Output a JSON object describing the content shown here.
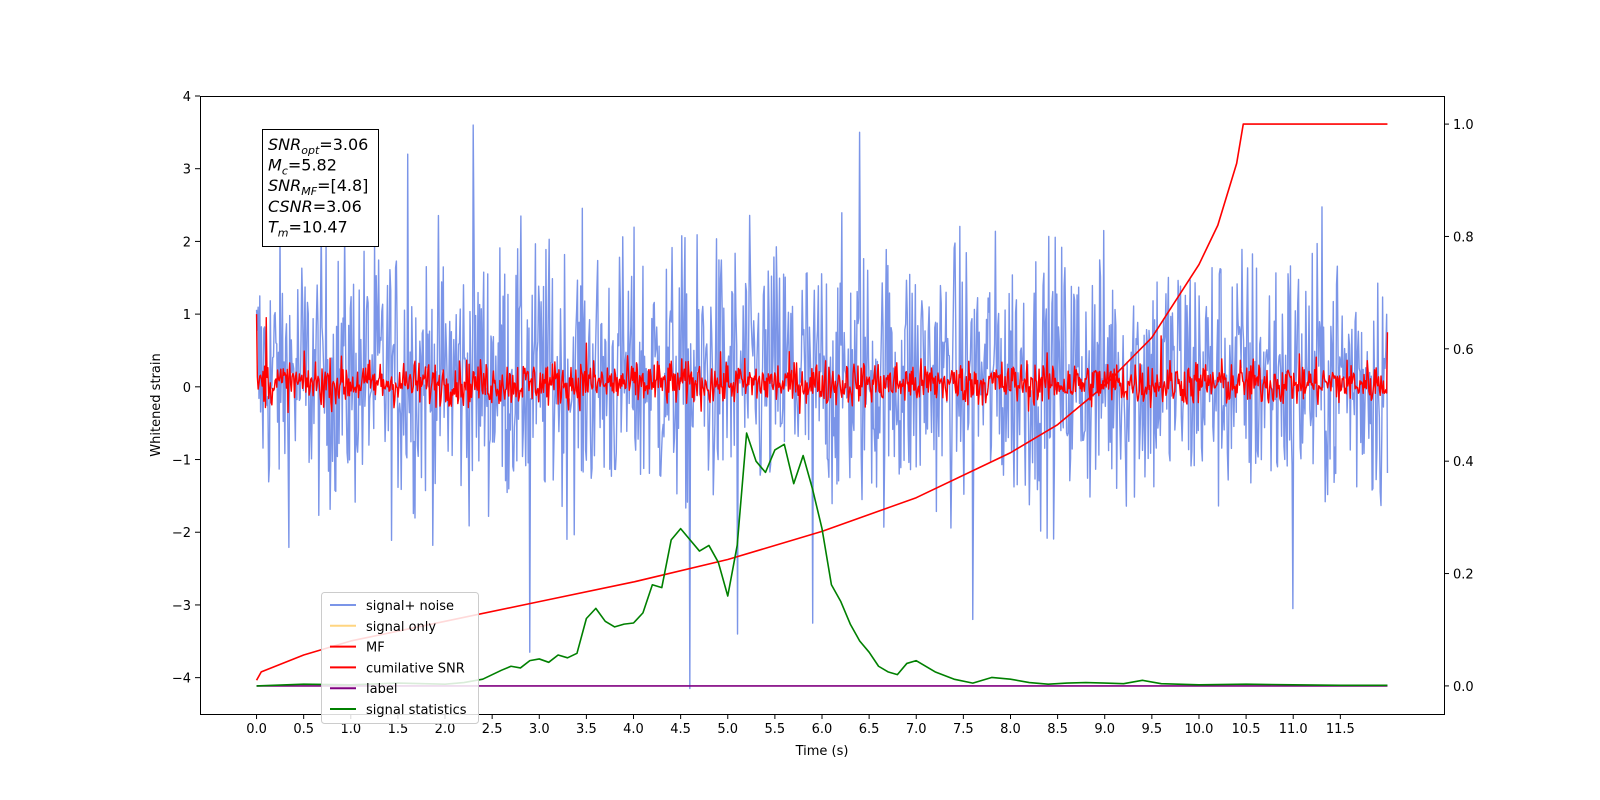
{
  "chart_data": {
    "type": "line",
    "xlabel": "Time (s)",
    "ylabel": "Whitened strain",
    "xlim": [
      -0.6,
      12.6
    ],
    "ylim": [
      -4.5,
      4.0
    ],
    "y2lim": [
      -0.05,
      1.05
    ],
    "x_ticks": [
      "0.0",
      "0.5",
      "1.0",
      "1.5",
      "2.0",
      "2.5",
      "3.0",
      "3.5",
      "4.0",
      "4.5",
      "5.0",
      "5.5",
      "6.0",
      "6.5",
      "7.0",
      "7.5",
      "8.0",
      "8.5",
      "9.0",
      "9.5",
      "10.0",
      "10.5",
      "11.0",
      "11.5"
    ],
    "y_ticks": [
      "4",
      "3",
      "2",
      "1",
      "0",
      "−1",
      "−2",
      "−3",
      "−4"
    ],
    "y2_ticks": [
      "1.0",
      "0.8",
      "0.6",
      "0.4",
      "0.2",
      "0.0"
    ],
    "annotation": [
      {
        "var": "SNR",
        "sub": "opt",
        "value": "=3.06"
      },
      {
        "var": "M",
        "sub": "c",
        "value": "=5.82"
      },
      {
        "var": "SNR",
        "sub": "MF",
        "value": "=[4.8]"
      },
      {
        "var": "CSNR",
        "sub": "",
        "value": "=3.06"
      },
      {
        "var": "T",
        "sub": "m",
        "value": "=10.47"
      }
    ],
    "legend": {
      "placement": "lower-left",
      "entries": [
        {
          "label": "signal+ noise",
          "color": "#7b95e8"
        },
        {
          "label": "signal only",
          "color": "#ffd580"
        },
        {
          "label": "MF",
          "color": "#ff0000"
        },
        {
          "label": "cumilative SNR",
          "color": "#ff0000"
        },
        {
          "label": "label",
          "color": "#800080"
        },
        {
          "label": "signal statistics",
          "color": "#008000"
        }
      ]
    },
    "series": [
      {
        "name": "signal+ noise",
        "color": "#7b95e8",
        "axis": "left",
        "kind": "noise",
        "x_range": [
          0.0,
          12.0
        ],
        "center": 0.15,
        "typical_range": [
          -1.8,
          2.3
        ],
        "spikes": [
          [
            2.3,
            3.6
          ],
          [
            6.4,
            3.5
          ],
          [
            1.6,
            3.2
          ],
          [
            4.6,
            -4.15
          ],
          [
            2.9,
            -3.65
          ],
          [
            5.1,
            -3.4
          ],
          [
            11.0,
            -3.05
          ],
          [
            5.9,
            -3.25
          ],
          [
            7.6,
            -3.2
          ]
        ]
      },
      {
        "name": "MF",
        "color": "#ff0000",
        "axis": "left",
        "kind": "noise",
        "x_range": [
          0.0,
          12.0
        ],
        "center": 0.05,
        "typical_range": [
          -0.3,
          0.4
        ],
        "spikes": [
          [
            0.0,
            1.0
          ],
          [
            0.1,
            0.95
          ],
          [
            3.5,
            0.6
          ],
          [
            9.6,
            0.7
          ],
          [
            12.0,
            0.75
          ]
        ]
      },
      {
        "name": "cumilative SNR",
        "color": "#ff0000",
        "axis": "right",
        "x": [
          0.0,
          0.05,
          0.5,
          1.0,
          2.0,
          3.0,
          4.0,
          5.0,
          6.0,
          7.0,
          8.0,
          8.5,
          9.0,
          9.5,
          10.0,
          10.2,
          10.4,
          10.47,
          11.0,
          12.0
        ],
        "y": [
          0.01,
          0.025,
          0.055,
          0.08,
          0.115,
          0.15,
          0.185,
          0.225,
          0.275,
          0.335,
          0.415,
          0.465,
          0.535,
          0.62,
          0.75,
          0.82,
          0.93,
          1.0,
          1.0,
          1.0
        ]
      },
      {
        "name": "label",
        "color": "#800080",
        "axis": "right",
        "x": [
          0.0,
          12.0
        ],
        "y": [
          0.0,
          0.0
        ]
      },
      {
        "name": "signal statistics",
        "color": "#008000",
        "axis": "right",
        "x": [
          0.0,
          0.5,
          1.0,
          1.5,
          2.0,
          2.2,
          2.4,
          2.6,
          2.7,
          2.8,
          2.9,
          3.0,
          3.1,
          3.2,
          3.3,
          3.4,
          3.5,
          3.6,
          3.7,
          3.8,
          3.9,
          4.0,
          4.1,
          4.2,
          4.3,
          4.4,
          4.5,
          4.6,
          4.7,
          4.8,
          4.9,
          5.0,
          5.1,
          5.2,
          5.3,
          5.4,
          5.5,
          5.6,
          5.7,
          5.8,
          5.9,
          6.0,
          6.1,
          6.2,
          6.3,
          6.4,
          6.5,
          6.6,
          6.7,
          6.8,
          6.9,
          7.0,
          7.2,
          7.4,
          7.6,
          7.8,
          8.0,
          8.2,
          8.4,
          8.6,
          8.8,
          9.0,
          9.2,
          9.4,
          9.6,
          10.0,
          10.5,
          11.0,
          11.5,
          12.0
        ],
        "y": [
          0.0,
          0.003,
          0.002,
          0.005,
          0.003,
          0.006,
          0.012,
          0.028,
          0.035,
          0.032,
          0.045,
          0.048,
          0.042,
          0.055,
          0.05,
          0.058,
          0.12,
          0.138,
          0.115,
          0.105,
          0.11,
          0.112,
          0.13,
          0.18,
          0.175,
          0.26,
          0.28,
          0.26,
          0.24,
          0.25,
          0.22,
          0.16,
          0.25,
          0.45,
          0.4,
          0.38,
          0.42,
          0.43,
          0.36,
          0.41,
          0.35,
          0.28,
          0.18,
          0.15,
          0.11,
          0.08,
          0.06,
          0.035,
          0.025,
          0.02,
          0.04,
          0.045,
          0.025,
          0.012,
          0.005,
          0.015,
          0.012,
          0.006,
          0.003,
          0.005,
          0.006,
          0.005,
          0.004,
          0.01,
          0.004,
          0.002,
          0.003,
          0.002,
          0.001,
          0.001
        ]
      }
    ]
  }
}
